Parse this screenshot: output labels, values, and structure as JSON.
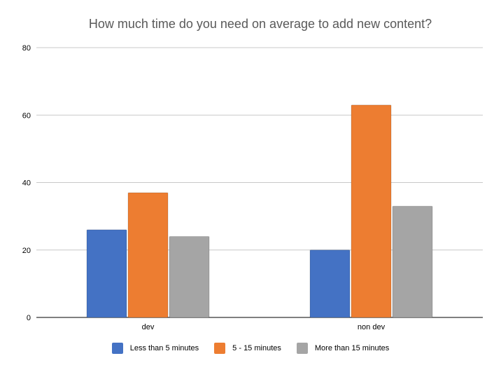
{
  "chart_data": {
    "type": "bar",
    "title": "How much time do you need on average to add new content?",
    "categories": [
      "dev",
      "non dev"
    ],
    "series": [
      {
        "name": "Less than 5 minutes",
        "values": [
          26,
          20
        ],
        "color": "#4472C4"
      },
      {
        "name": "5 - 15 minutes",
        "values": [
          37,
          63
        ],
        "color": "#ED7D31"
      },
      {
        "name": "More than 15 minutes",
        "values": [
          24,
          33
        ],
        "color": "#A5A5A5"
      }
    ],
    "xlabel": "",
    "ylabel": "",
    "ylim": [
      0,
      80
    ],
    "yticks": [
      0,
      20,
      40,
      60,
      80
    ],
    "grid": true,
    "legend_position": "bottom"
  }
}
